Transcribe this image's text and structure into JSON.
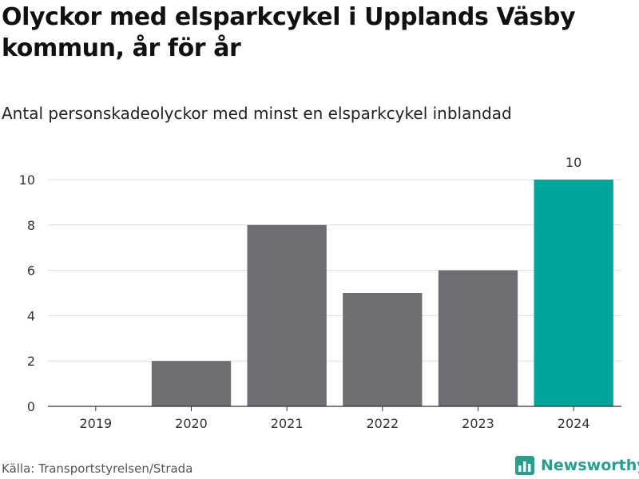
{
  "title": "Olyckor med elsparkcykel i Upplands Väsby kommun, år för år",
  "subtitle": "Antal personskadeolyckor med minst en elsparkcykel inblandad",
  "source": "Källa: Transportstyrelsen/Strada",
  "brand": "Newsworthy",
  "colors": {
    "bar": "#6e6d72",
    "highlight": "#00a49a",
    "grid": "#dddddd",
    "axis": "#333333",
    "brand": "#2a9d8f"
  },
  "chart_data": {
    "type": "bar",
    "categories": [
      "2019",
      "2020",
      "2021",
      "2022",
      "2023",
      "2024"
    ],
    "values": [
      0,
      2,
      8,
      5,
      6,
      10
    ],
    "highlight_index": 5,
    "data_labels": [
      {
        "index": 5,
        "text": "10"
      }
    ],
    "yticks": [
      0,
      2,
      4,
      6,
      8,
      10
    ],
    "ylim": [
      0,
      10
    ],
    "xlabel": "",
    "ylabel": "",
    "grid": true
  }
}
